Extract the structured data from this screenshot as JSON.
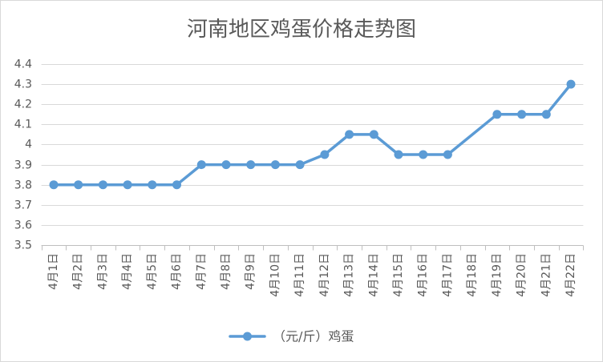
{
  "chart_data": {
    "type": "line",
    "title": "河南地区鸡蛋价格走势图",
    "categories": [
      "4月1日",
      "4月2日",
      "4月3日",
      "4月4日",
      "4月5日",
      "4月6日",
      "4月7日",
      "4月8日",
      "4月9日",
      "4月10日",
      "4月11日",
      "4月12日",
      "4月13日",
      "4月14日",
      "4月15日",
      "4月16日",
      "4月17日",
      "4月18日",
      "4月19日",
      "4月20日",
      "4月21日",
      "4月22日"
    ],
    "series": [
      {
        "name": "（元/斤）鸡蛋",
        "color": "#5b9bd5",
        "values": [
          3.8,
          3.8,
          3.8,
          3.8,
          3.8,
          3.8,
          3.9,
          3.9,
          3.9,
          3.9,
          3.9,
          3.95,
          4.05,
          4.05,
          3.95,
          3.95,
          3.95,
          null,
          4.15,
          4.15,
          4.15,
          4.3
        ]
      }
    ],
    "ylim": [
      3.5,
      4.4
    ],
    "y_tick_labels": [
      "3.5",
      "3.6",
      "3.7",
      "3.8",
      "3.9",
      "4",
      "4.1",
      "4.2",
      "4.3",
      "4.4"
    ],
    "grid": true,
    "legend": "bottom",
    "colors": {
      "grid": "#d9d9d9",
      "axis": "#bfbfbf",
      "text": "#595959",
      "border": "#d9d9d9"
    }
  }
}
